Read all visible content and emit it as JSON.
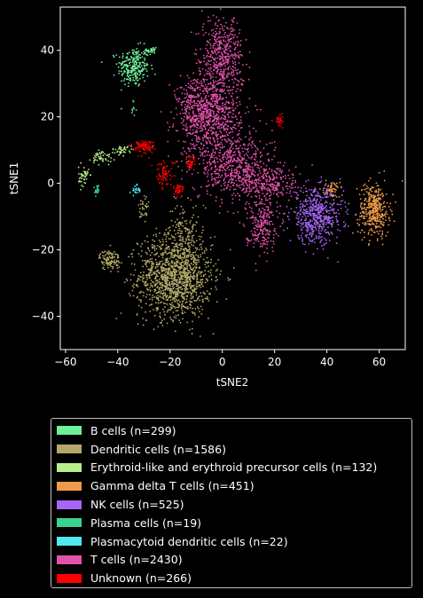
{
  "chart_data": {
    "type": "scatter",
    "title": "",
    "xlabel": "tSNE2",
    "ylabel": "tSNE1",
    "xlim": [
      -62,
      70
    ],
    "ylim": [
      -50,
      53
    ],
    "xticks": [
      -60,
      -40,
      -20,
      0,
      20,
      40,
      60
    ],
    "yticks": [
      -40,
      -20,
      0,
      20,
      40
    ],
    "xtick_labels": [
      "−60",
      "−40",
      "−20",
      "0",
      "20",
      "40",
      "60"
    ],
    "ytick_labels": [
      "−40",
      "−20",
      "0",
      "20",
      "40"
    ],
    "grid": false,
    "legend_position": "below",
    "series": [
      {
        "name": "B cells (n=299)",
        "color": "#6ef09a",
        "clusters": [
          {
            "cx": -34,
            "cy": 35,
            "sx": 3,
            "sy": 3,
            "n": 260
          },
          {
            "cx": -27,
            "cy": 40,
            "sx": 1,
            "sy": 0.8,
            "n": 30
          },
          {
            "cx": -34,
            "cy": 22,
            "sx": 0.5,
            "sy": 1.5,
            "n": 9
          }
        ]
      },
      {
        "name": "Dendritic cells (n=1586)",
        "color": "#b3a96a",
        "clusters": [
          {
            "cx": -18,
            "cy": -28,
            "sx": 7,
            "sy": 6,
            "n": 1320
          },
          {
            "cx": -15,
            "cy": -14,
            "sx": 3,
            "sy": 4,
            "n": 120
          },
          {
            "cx": -43,
            "cy": -23,
            "sx": 2,
            "sy": 1.5,
            "n": 110
          },
          {
            "cx": -30,
            "cy": -8,
            "sx": 1,
            "sy": 3,
            "n": 36
          }
        ]
      },
      {
        "name": "Erythroid-like and erythroid precursor cells (n=132)",
        "color": "#b6ee8b",
        "clusters": [
          {
            "cx": -53,
            "cy": 2,
            "sx": 1,
            "sy": 1.5,
            "n": 45
          },
          {
            "cx": -46,
            "cy": 8,
            "sx": 2,
            "sy": 1.2,
            "n": 50
          },
          {
            "cx": -38,
            "cy": 10,
            "sx": 2,
            "sy": 0.6,
            "n": 37
          }
        ]
      },
      {
        "name": "Gamma delta T cells (n=451)",
        "color": "#ee9a4a",
        "clusters": [
          {
            "cx": 58,
            "cy": -8,
            "sx": 3,
            "sy": 4,
            "n": 390
          },
          {
            "cx": 42,
            "cy": -2,
            "sx": 1.5,
            "sy": 1.2,
            "n": 61
          }
        ]
      },
      {
        "name": "NK cells (n=525)",
        "color": "#a766f5",
        "clusters": [
          {
            "cx": 36,
            "cy": -10,
            "sx": 5,
            "sy": 4,
            "n": 525
          }
        ]
      },
      {
        "name": "Plasma cells (n=19)",
        "color": "#3cd090",
        "clusters": [
          {
            "cx": -48,
            "cy": -2,
            "sx": 0.4,
            "sy": 0.8,
            "n": 19
          }
        ]
      },
      {
        "name": "Plasmacytoid dendritic cells (n=22)",
        "color": "#4ee8ee",
        "clusters": [
          {
            "cx": -33,
            "cy": -2,
            "sx": 1,
            "sy": 0.8,
            "n": 22
          }
        ]
      },
      {
        "name": "T cells (n=2430)",
        "color": "#e351aa",
        "clusters": [
          {
            "cx": 0,
            "cy": 38,
            "sx": 4,
            "sy": 6,
            "n": 480
          },
          {
            "cx": -5,
            "cy": 20,
            "sx": 6,
            "sy": 6,
            "n": 820
          },
          {
            "cx": 5,
            "cy": 5,
            "sx": 7,
            "sy": 5,
            "n": 560
          },
          {
            "cx": 18,
            "cy": 0,
            "sx": 6,
            "sy": 3,
            "n": 260
          },
          {
            "cx": 15,
            "cy": -12,
            "sx": 3,
            "sy": 4,
            "n": 230
          },
          {
            "cx": -12,
            "cy": 25,
            "sx": 3,
            "sy": 4,
            "n": 80
          }
        ]
      },
      {
        "name": "Unknown (n=266)",
        "color": "#ff0000",
        "clusters": [
          {
            "cx": -30,
            "cy": 11,
            "sx": 2,
            "sy": 1,
            "n": 90
          },
          {
            "cx": -22,
            "cy": 3,
            "sx": 2,
            "sy": 2,
            "n": 70
          },
          {
            "cx": -17,
            "cy": -2,
            "sx": 1,
            "sy": 1,
            "n": 40
          },
          {
            "cx": 22,
            "cy": 19,
            "sx": 1,
            "sy": 1,
            "n": 26
          },
          {
            "cx": -12,
            "cy": 6,
            "sx": 1,
            "sy": 1,
            "n": 40
          }
        ]
      }
    ]
  }
}
